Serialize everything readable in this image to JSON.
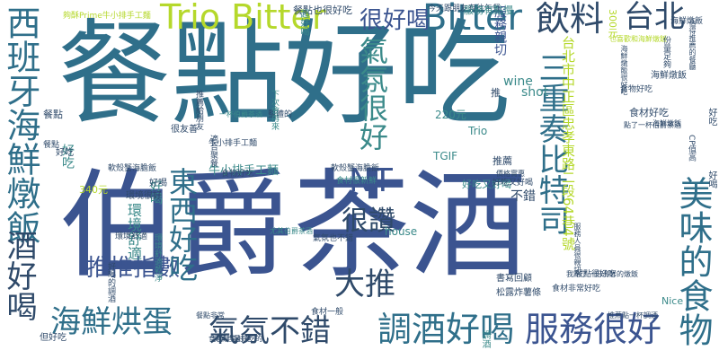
{
  "words": [
    {
      "text": "餐點好吃",
      "color": "#2f6f8a",
      "orient": "h"
    },
    {
      "text": "伯爵茶酒",
      "color": "#3b5490",
      "orient": "h"
    },
    {
      "text": "Trio Bitter",
      "color": "#b5d82b",
      "orient": "h"
    },
    {
      "text": "Bitter",
      "color": "#2f6f8a",
      "orient": "h"
    },
    {
      "text": "飲料",
      "color": "#2f4a6a",
      "orient": "h"
    },
    {
      "text": "台北",
      "color": "#2f4a6a",
      "orient": "h"
    },
    {
      "text": "很好喝",
      "color": "#3b5490",
      "orient": "h"
    },
    {
      "text": "NT",
      "color": "#3b5490",
      "orient": "h"
    },
    {
      "text": "很讚",
      "color": "#2f4a6a",
      "orient": "h"
    },
    {
      "text": "大推",
      "color": "#2f4a6a",
      "orient": "h"
    },
    {
      "text": "推推指數",
      "color": "#3b5490",
      "orient": "h"
    },
    {
      "text": "海鮮烘蛋",
      "color": "#2f6f8a",
      "orient": "h"
    },
    {
      "text": "氣氛不錯",
      "color": "#2f4a6a",
      "orient": "h"
    },
    {
      "text": "調酒好喝",
      "color": "#2f6f8a",
      "orient": "h"
    },
    {
      "text": "服務很好",
      "color": "#3b5490",
      "orient": "h"
    },
    {
      "text": "西班牙海鮮燉飯",
      "color": "#2f6f8a",
      "orient": "v"
    },
    {
      "text": "三重奏比特司",
      "color": "#2f6f8a",
      "orient": "v"
    },
    {
      "text": "氣氛很好",
      "color": "#3b8a8a",
      "orient": "v"
    },
    {
      "text": "東西好吃",
      "color": "#2f6f8a",
      "orient": "v"
    },
    {
      "text": "美味的食物",
      "color": "#2f6f8a",
      "orient": "v"
    },
    {
      "text": "酒好喝",
      "color": "#2f4a6a",
      "orient": "v"
    },
    {
      "text": "台北市中正區忠孝東路二段64巷4號",
      "color": "#b5d82b",
      "orient": "v"
    },
    {
      "text": "服務親切",
      "color": "#3b5490",
      "orient": "v"
    },
    {
      "text": "環境舒適",
      "color": "#3b8a8a",
      "orient": "v"
    },
    {
      "text": "好吃",
      "color": "#3b8a8a",
      "orient": "v"
    },
    {
      "text": "好喝",
      "color": "#3b8a8a",
      "orient": "v"
    },
    {
      "text": "牛小排手工麵",
      "color": "#3b8a8a",
      "orient": "h"
    },
    {
      "text": "餐點也很好吃",
      "color": "#2f4a6a",
      "orient": "h"
    },
    {
      "text": "好吃又好喝",
      "color": "#3b8a8a",
      "orient": "h"
    },
    {
      "text": "食材好吃",
      "color": "#2f4a6a",
      "orient": "h"
    },
    {
      "text": "食材很新鮮",
      "color": "#3b8a8a",
      "orient": "h"
    },
    {
      "text": "海鮮燉飯",
      "color": "#2f4a6a",
      "orient": "h"
    },
    {
      "text": "shot",
      "color": "#3b8a8a",
      "orient": "h"
    },
    {
      "text": "wine",
      "color": "#3b8a8a",
      "orient": "h"
    },
    {
      "text": "house",
      "color": "#3b8a8a",
      "orient": "h"
    },
    {
      "text": "Nice",
      "color": "#3b8a8a",
      "orient": "h"
    },
    {
      "text": "Trio",
      "color": "#3b8a8a",
      "orient": "h"
    },
    {
      "text": "TGIF",
      "color": "#3b8a8a",
      "orient": "h"
    },
    {
      "text": "220元",
      "color": "#3b8a8a",
      "orient": "h"
    },
    {
      "text": "340元",
      "color": "#b5d82b",
      "orient": "h"
    },
    {
      "text": "300元",
      "color": "#b5d82b",
      "orient": "v"
    },
    {
      "text": "推薦",
      "color": "#2f4a6a",
      "orient": "h"
    },
    {
      "text": "不錯",
      "color": "#2f4a6a",
      "orient": "h"
    },
    {
      "text": "推",
      "color": "#2f4a6a",
      "orient": "h"
    },
    {
      "text": "餐點",
      "color": "#2f4a6a",
      "orient": "h"
    },
    {
      "text": "書寫回顧",
      "color": "#2f4a6a",
      "orient": "h"
    },
    {
      "text": "松露炸薯條",
      "color": "#2f4a6a",
      "orient": "h"
    },
    {
      "text": "食材非常好吃",
      "color": "#2f4a6a",
      "orient": "h"
    },
    {
      "text": "食材一般",
      "color": "#2f4a6a",
      "orient": "h"
    },
    {
      "text": "海鮮燉飯",
      "color": "#2f4a6a",
      "orient": "h"
    },
    {
      "text": "軟殼蟹海膽飯",
      "color": "#2f4a6a",
      "orient": "h"
    },
    {
      "text": "軟殼蟹海膽飯",
      "color": "#2f4a6a",
      "orient": "h"
    },
    {
      "text": "食物好吃",
      "color": "#2f4a6a",
      "orient": "h"
    },
    {
      "text": "食物好吃",
      "color": "#2f4a6a",
      "orient": "h"
    },
    {
      "text": "好吃又好喝",
      "color": "#2f4a6a",
      "orient": "h"
    },
    {
      "text": "餐點很好吃",
      "color": "#2f4a6a",
      "orient": "h"
    },
    {
      "text": "牛小排手工麵",
      "color": "#2f4a6a",
      "orient": "h"
    },
    {
      "text": "夠酥Prime牛小排手工麵",
      "color": "#b5d82b",
      "orient": "h"
    },
    {
      "text": "環境很好",
      "color": "#2f4a6a",
      "orient": "h"
    },
    {
      "text": "環境舒適",
      "color": "#2f4a6a",
      "orient": "h"
    },
    {
      "text": "很友善",
      "color": "#2f4a6a",
      "orient": "h"
    },
    {
      "text": "好喝",
      "color": "#2f4a6a",
      "orient": "h"
    },
    {
      "text": "好吃",
      "color": "#2f4a6a",
      "orient": "h"
    },
    {
      "text": "餐點",
      "color": "#2f4a6a",
      "orient": "h"
    },
    {
      "text": "但好吃",
      "color": "#2f4a6a",
      "orient": "h"
    },
    {
      "text": "食物非常好吃",
      "color": "#2f4a6a",
      "orient": "h"
    },
    {
      "text": "整體的",
      "color": "#2f4a6a",
      "orient": "h"
    },
    {
      "text": "今天跟朋友有往午餐",
      "color": "#2f4a6a",
      "orient": "h"
    },
    {
      "text": "服務有點慢",
      "color": "#3b8a8a",
      "orient": "h"
    },
    {
      "text": "海鮮燉飯",
      "color": "#2f4a6a",
      "orient": "h"
    },
    {
      "text": "也喜歡和海鮮燉飯",
      "color": "#b5d82b",
      "orient": "h"
    },
    {
      "text": "點了一杯伯爵茶酒",
      "color": "#2f4a6a",
      "orient": "h"
    },
    {
      "text": "我點了一份海鮮的燉飯",
      "color": "#2f4a6a",
      "orient": "h"
    },
    {
      "text": "推薦點一杯調酒",
      "color": "#2f4a6a",
      "orient": "h"
    },
    {
      "text": "淡菜也是好吃的",
      "color": "#2f4a6a",
      "orient": "h"
    },
    {
      "text": "一杯伯爵茶酒",
      "color": "#3b8a8a",
      "orient": "h"
    },
    {
      "text": "尤其伯爵茶酒",
      "color": "#3b8a8a",
      "orient": "h"
    },
    {
      "text": "餐點非常",
      "color": "#2f4a6a",
      "orient": "h"
    },
    {
      "text": "氣氛也不錯",
      "color": "#2f4a6a",
      "orient": "h"
    },
    {
      "text": "價格實惠",
      "color": "#2f4a6a",
      "orient": "h"
    },
    {
      "text": "推薦給朋友",
      "color": "#2f4a6a",
      "orient": "v"
    },
    {
      "text": "好喝的調酒",
      "color": "#2f4a6a",
      "orient": "v"
    },
    {
      "text": "下次會再來",
      "color": "#3b8a8a",
      "orient": "v"
    },
    {
      "text": "服務人員很親切",
      "color": "#2f4a6a",
      "orient": "v"
    },
    {
      "text": "值得推薦的餐廳",
      "color": "#2f4a6a",
      "orient": "v"
    },
    {
      "text": "超好喝",
      "color": "#3b8a8a",
      "orient": "v"
    },
    {
      "text": "調酒",
      "color": "#3b8a8a",
      "orient": "v"
    },
    {
      "text": "海鮮燉飯很好吃",
      "color": "#2f4a6a",
      "orient": "v"
    },
    {
      "text": "CP值高",
      "color": "#2f4a6a",
      "orient": "v"
    },
    {
      "text": "份量足夠",
      "color": "#2f4a6a",
      "orient": "v"
    },
    {
      "text": "環境舒適乾淨",
      "color": "#3b8a8a",
      "orient": "v"
    },
    {
      "text": "適合聚餐",
      "color": "#2f4a6a",
      "orient": "v"
    },
    {
      "text": "好吃",
      "color": "#2f4a6a",
      "orient": "v"
    },
    {
      "text": "好喝",
      "color": "#2f4a6a",
      "orient": "v"
    }
  ]
}
